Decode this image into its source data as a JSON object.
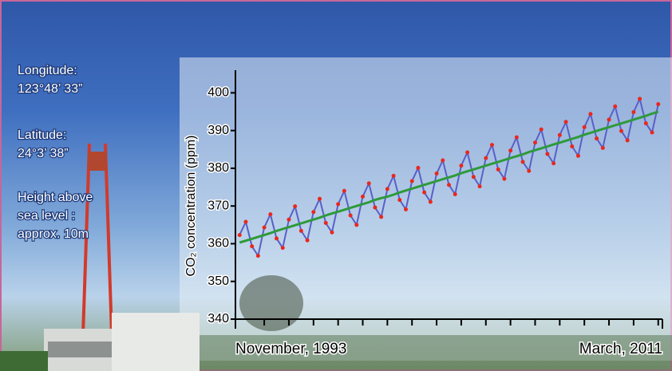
{
  "site": {
    "longitude_label": "Longitude:",
    "longitude": "123°48’ 33”",
    "latitude_label": "Latitude:",
    "latitude": "24°3’ 38”",
    "height_label_1": "Height above",
    "height_label_2": "sea level :",
    "height": "approx. 10m"
  },
  "chart_data": {
    "type": "line",
    "ylabel": "CO₂ concentration (ppm)",
    "x": [
      1994,
      1994.25,
      1994.5,
      1994.75,
      1995,
      1995.25,
      1995.5,
      1995.75,
      1996,
      1996.25,
      1996.5,
      1996.75,
      1997,
      1997.25,
      1997.5,
      1997.75,
      1998,
      1998.25,
      1998.5,
      1998.75,
      1999,
      1999.25,
      1999.5,
      1999.75,
      2000,
      2000.25,
      2000.5,
      2000.75,
      2001,
      2001.25,
      2001.5,
      2001.75,
      2002,
      2002.25,
      2002.5,
      2002.75,
      2003,
      2003.25,
      2003.5,
      2003.75,
      2004,
      2004.25,
      2004.5,
      2004.75,
      2005,
      2005.25,
      2005.5,
      2005.75,
      2006,
      2006.25,
      2006.5,
      2006.75,
      2007,
      2007.25,
      2007.5,
      2007.75,
      2008,
      2008.25,
      2008.5,
      2008.75,
      2009,
      2009.25,
      2009.5,
      2009.75,
      2010,
      2010.25,
      2010.5,
      2010.75,
      2011
    ],
    "series": [
      {
        "color": "#e8281e",
        "line_color": "#5a5fc8",
        "values": [
          362.3,
          365.8,
          359.3,
          356.8,
          364.3,
          367.8,
          361.4,
          358.9,
          366.4,
          369.9,
          363.4,
          360.9,
          368.4,
          371.9,
          365.5,
          363.0,
          370.5,
          374.0,
          367.5,
          365.0,
          372.5,
          376.0,
          369.6,
          367.1,
          374.5,
          378.0,
          371.6,
          369.1,
          376.6,
          380.1,
          373.6,
          371.1,
          378.6,
          382.1,
          375.6,
          373.1,
          380.7,
          384.2,
          377.7,
          375.2,
          382.7,
          386.2,
          379.7,
          377.2,
          384.7,
          388.2,
          381.7,
          379.3,
          386.8,
          390.3,
          383.8,
          381.3,
          388.8,
          392.3,
          385.8,
          383.3,
          390.9,
          394.4,
          387.9,
          385.4,
          392.9,
          396.4,
          389.9,
          387.4,
          394.9,
          398.4,
          391.9,
          389.5,
          397.0
        ]
      },
      {
        "color": "#2e9a3a",
        "values": [
          360.3,
          360.8,
          361.3,
          361.8,
          362.3,
          362.8,
          363.4,
          363.9,
          364.4,
          364.9,
          365.4,
          365.9,
          366.4,
          366.9,
          367.5,
          368.0,
          368.5,
          369.0,
          369.5,
          370.0,
          370.5,
          371.0,
          371.6,
          372.1,
          372.5,
          373.0,
          373.6,
          374.1,
          374.6,
          375.1,
          375.6,
          376.1,
          376.6,
          377.1,
          377.6,
          378.1,
          378.7,
          379.2,
          379.7,
          380.2,
          380.7,
          381.2,
          381.7,
          382.2,
          382.7,
          383.2,
          383.7,
          384.3,
          384.8,
          385.3,
          385.8,
          386.3,
          386.8,
          387.3,
          387.8,
          388.3,
          388.9,
          389.4,
          389.9,
          390.4,
          390.9,
          391.4,
          391.9,
          392.4,
          392.9,
          393.4,
          393.9,
          394.5,
          395.0
        ]
      }
    ],
    "xlim": [
      1993.83,
      2011.17
    ],
    "xticks": [
      {
        "value": 1993.83,
        "label": "November, 1993"
      },
      {
        "value": 2011.17,
        "label": "March, 2011"
      }
    ],
    "xminorticks": [
      1995,
      1996,
      1997,
      1998,
      1999,
      2000,
      2001,
      2002,
      2003,
      2004,
      2005,
      2006,
      2007,
      2008,
      2009,
      2010,
      2011
    ],
    "ylim": [
      340,
      406
    ],
    "yticks": [
      340,
      350,
      360,
      370,
      380,
      390,
      400
    ],
    "grid": false
  }
}
